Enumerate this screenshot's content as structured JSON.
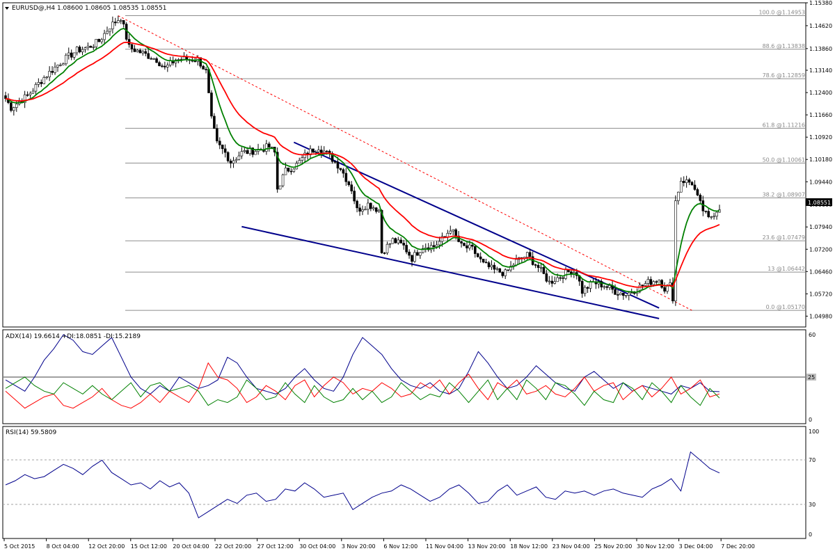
{
  "chart_data": [
    {
      "type": "candlestick",
      "title": "EURUSD@,H4  1.08600 1.08605 1.08535 1.08551",
      "last_price": "1.08551",
      "ylim": [
        1.0462,
        1.1538
      ],
      "y_ticks": [
        "1.15380",
        "1.14620",
        "1.13860",
        "1.13140",
        "1.12400",
        "1.11660",
        "1.10920",
        "1.10180",
        "1.09440",
        "1.08680",
        "1.07940",
        "1.07200",
        "1.06460",
        "1.05720",
        "1.04980"
      ],
      "x_ticks": [
        "5 Oct 2015",
        "8 Oct 04:00",
        "12 Oct 20:00",
        "15 Oct 12:00",
        "20 Oct 04:00",
        "22 Oct 20:00",
        "27 Oct 12:00",
        "30 Oct 04:00",
        "3 Nov 20:00",
        "6 Nov 12:00",
        "11 Nov 04:00",
        "13 Nov 20:00",
        "18 Nov 12:00",
        "23 Nov 04:00",
        "25 Nov 20:00",
        "30 Nov 12:00",
        "3 Dec 04:00",
        "7 Dec 20:00"
      ],
      "fibonacci_levels": [
        {
          "label": "100.0 @1.14953",
          "value": 1.14953
        },
        {
          "label": "88.6 @1.13838",
          "value": 1.13838
        },
        {
          "label": "78.6 @1.12859",
          "value": 1.12859
        },
        {
          "label": "61.8 @1.11216",
          "value": 1.11216
        },
        {
          "label": "50.0 @1.10061",
          "value": 1.10061
        },
        {
          "label": "38.2 @1.08907",
          "value": 1.08907
        },
        {
          "label": "23.6 @1.07479",
          "value": 1.07479
        },
        {
          "label": "13 @1.06442",
          "value": 1.06442
        },
        {
          "label": "0.0 @1.05170",
          "value": 1.0517
        }
      ],
      "close_anchors": [
        [
          0,
          1.122
        ],
        [
          2,
          1.119
        ],
        [
          8,
          1.123
        ],
        [
          14,
          1.129
        ],
        [
          20,
          1.134
        ],
        [
          26,
          1.138
        ],
        [
          30,
          1.139
        ],
        [
          34,
          1.141
        ],
        [
          38,
          1.146
        ],
        [
          42,
          1.149
        ],
        [
          45,
          1.139
        ],
        [
          50,
          1.137
        ],
        [
          55,
          1.135
        ],
        [
          58,
          1.132
        ],
        [
          62,
          1.135
        ],
        [
          70,
          1.135
        ],
        [
          73,
          1.131
        ],
        [
          75,
          1.115
        ],
        [
          77,
          1.107
        ],
        [
          80,
          1.104
        ],
        [
          82,
          1.101
        ],
        [
          86,
          1.104
        ],
        [
          92,
          1.105
        ],
        [
          96,
          1.106
        ],
        [
          98,
          1.104
        ],
        [
          99,
          1.092
        ],
        [
          102,
          1.098
        ],
        [
          106,
          1.1
        ],
        [
          110,
          1.104
        ],
        [
          114,
          1.106
        ],
        [
          118,
          1.103
        ],
        [
          122,
          1.099
        ],
        [
          126,
          1.092
        ],
        [
          128,
          1.085
        ],
        [
          132,
          1.087
        ],
        [
          136,
          1.085
        ],
        [
          137,
          1.071
        ],
        [
          141,
          1.075
        ],
        [
          145,
          1.073
        ],
        [
          148,
          1.069
        ],
        [
          152,
          1.073
        ],
        [
          156,
          1.073
        ],
        [
          160,
          1.076
        ],
        [
          162,
          1.079
        ],
        [
          166,
          1.073
        ],
        [
          170,
          1.072
        ],
        [
          174,
          1.067
        ],
        [
          178,
          1.065
        ],
        [
          182,
          1.064
        ],
        [
          186,
          1.068
        ],
        [
          190,
          1.07
        ],
        [
          194,
          1.066
        ],
        [
          198,
          1.061
        ],
        [
          202,
          1.063
        ],
        [
          206,
          1.065
        ],
        [
          208,
          1.064
        ],
        [
          210,
          1.058
        ],
        [
          214,
          1.061
        ],
        [
          218,
          1.06
        ],
        [
          222,
          1.058
        ],
        [
          226,
          1.057
        ],
        [
          230,
          1.059
        ],
        [
          234,
          1.061
        ],
        [
          238,
          1.062
        ],
        [
          240,
          1.059
        ],
        [
          242,
          1.06
        ],
        [
          243,
          1.056
        ],
        [
          244,
          1.088
        ],
        [
          246,
          1.095
        ],
        [
          250,
          1.094
        ],
        [
          252,
          1.089
        ],
        [
          254,
          1.085
        ],
        [
          256,
          1.082
        ],
        [
          258,
          1.084
        ],
        [
          260,
          1.086
        ]
      ],
      "ema_fast_end": 1.0808,
      "ema_slow_end": 1.0753,
      "ema_fast_color": "#008000",
      "ema_slow_color": "#ff0000",
      "trendline_color": "#00008b",
      "trendline_dashed_color": "#ff0000"
    },
    {
      "type": "line",
      "title": "ADX(14) 19.6614 +DI:18.0851 -DI:15.2189",
      "ylim": [
        0,
        60
      ],
      "y_ticks": [
        "60",
        "25",
        "0"
      ],
      "level": "25",
      "series": [
        {
          "name": "ADX(14)",
          "color": "#00008b",
          "values": [
            28,
            24,
            20,
            30,
            42,
            50,
            60,
            56,
            48,
            46,
            52,
            58,
            44,
            30,
            22,
            18,
            24,
            20,
            30,
            26,
            22,
            24,
            28,
            44,
            40,
            30,
            22,
            20,
            18,
            22,
            30,
            36,
            28,
            22,
            20,
            30,
            46,
            58,
            52,
            46,
            36,
            28,
            24,
            22,
            26,
            20,
            18,
            22,
            34,
            48,
            40,
            30,
            22,
            24,
            30,
            38,
            32,
            26,
            22,
            20,
            30,
            34,
            28,
            22,
            26,
            20,
            24,
            22,
            20,
            18,
            24,
            22,
            26,
            20,
            19.66
          ]
        },
        {
          "name": "+DI",
          "color": "#ff0000",
          "values": [
            20,
            14,
            8,
            12,
            16,
            18,
            10,
            8,
            12,
            16,
            22,
            14,
            10,
            8,
            12,
            18,
            12,
            20,
            16,
            12,
            22,
            40,
            30,
            28,
            22,
            12,
            16,
            24,
            20,
            14,
            24,
            28,
            16,
            24,
            30,
            26,
            18,
            22,
            20,
            26,
            22,
            16,
            18,
            26,
            22,
            28,
            18,
            26,
            32,
            22,
            14,
            26,
            22,
            28,
            18,
            20,
            24,
            18,
            16,
            22,
            30,
            20,
            24,
            26,
            14,
            20,
            24,
            16,
            22,
            30,
            18,
            22,
            28,
            16,
            18.09
          ]
        },
        {
          "name": "-DI",
          "color": "#008000",
          "values": [
            22,
            26,
            30,
            24,
            20,
            18,
            26,
            22,
            18,
            24,
            18,
            14,
            20,
            26,
            16,
            24,
            26,
            20,
            22,
            24,
            20,
            10,
            14,
            12,
            16,
            28,
            22,
            14,
            16,
            26,
            18,
            12,
            24,
            16,
            12,
            14,
            22,
            14,
            20,
            12,
            16,
            26,
            20,
            14,
            18,
            16,
            26,
            20,
            12,
            20,
            28,
            14,
            22,
            14,
            28,
            22,
            14,
            26,
            24,
            18,
            10,
            20,
            14,
            12,
            26,
            22,
            14,
            26,
            20,
            12,
            24,
            16,
            10,
            22,
            15.22
          ]
        }
      ]
    },
    {
      "type": "line",
      "title": "RSI(14) 59.5809",
      "ylim": [
        0,
        100
      ],
      "y_ticks": [
        "100",
        "70",
        "30",
        "0"
      ],
      "levels": [
        "70",
        "30"
      ],
      "series": [
        {
          "name": "RSI(14)",
          "color": "#00008b",
          "values": [
            48,
            52,
            58,
            54,
            56,
            62,
            68,
            64,
            58,
            66,
            72,
            60,
            54,
            48,
            50,
            44,
            52,
            46,
            50,
            40,
            16,
            22,
            28,
            34,
            30,
            38,
            40,
            32,
            34,
            44,
            42,
            50,
            44,
            36,
            38,
            40,
            24,
            30,
            36,
            40,
            42,
            48,
            44,
            38,
            32,
            36,
            44,
            48,
            40,
            30,
            32,
            42,
            48,
            38,
            42,
            46,
            36,
            34,
            42,
            40,
            42,
            38,
            42,
            44,
            40,
            38,
            36,
            44,
            48,
            54,
            42,
            80,
            72,
            64,
            59.58
          ]
        }
      ]
    }
  ]
}
